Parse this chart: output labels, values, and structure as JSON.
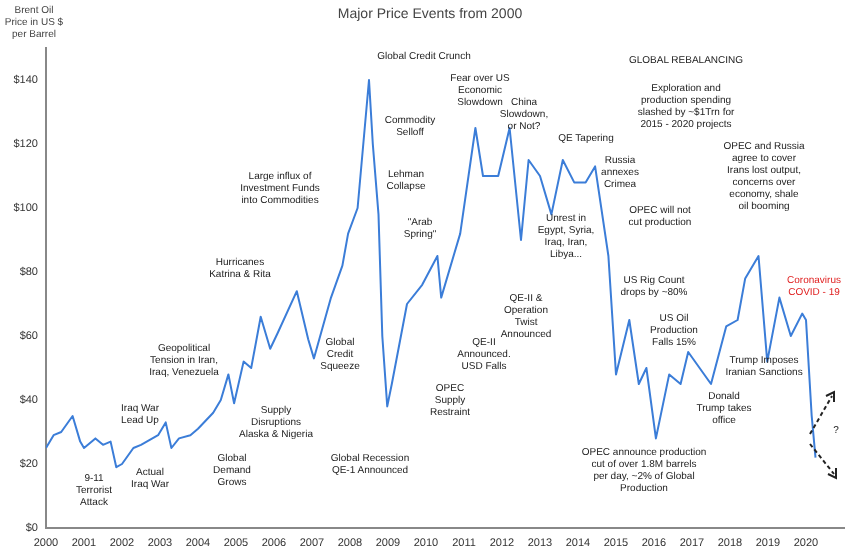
{
  "chart_data": {
    "type": "line",
    "title": "Major Price Events from 2000",
    "ylabel": "Brent Oil\nPrice in US $\nper Barrel",
    "x": [
      2000.0,
      2000.2,
      2000.4,
      2000.7,
      2000.9,
      2001.0,
      2001.3,
      2001.5,
      2001.7,
      2001.85,
      2002.0,
      2002.3,
      2002.5,
      2002.8,
      2002.95,
      2003.15,
      2003.3,
      2003.5,
      2003.8,
      2004.0,
      2004.4,
      2004.6,
      2004.8,
      2004.95,
      2005.2,
      2005.4,
      2005.65,
      2005.9,
      2006.1,
      2006.6,
      2006.9,
      2007.05,
      2007.5,
      2007.8,
      2007.95,
      2008.2,
      2008.5,
      2008.6,
      2008.75,
      2008.85,
      2008.98,
      2009.1,
      2009.5,
      2009.9,
      2010.3,
      2010.4,
      2010.9,
      2011.3,
      2011.5,
      2011.9,
      2012.2,
      2012.5,
      2012.7,
      2013.0,
      2013.3,
      2013.6,
      2013.9,
      2014.2,
      2014.45,
      2014.8,
      2015.0,
      2015.35,
      2015.6,
      2015.8,
      2016.05,
      2016.4,
      2016.7,
      2016.9,
      2017.5,
      2017.9,
      2018.2,
      2018.4,
      2018.75,
      2018.98,
      2019.3,
      2019.6,
      2019.9,
      2020.0,
      2020.15,
      2020.25
    ],
    "series": [
      {
        "color": "#3b7dd8",
        "values": [
          25,
          29,
          30,
          35,
          27,
          25,
          28,
          26,
          27,
          19,
          20,
          25,
          26,
          28,
          29,
          33,
          25,
          28,
          29,
          31,
          36,
          40,
          48,
          39,
          52,
          50,
          66,
          56,
          61,
          74,
          59,
          53,
          72,
          82,
          92,
          100,
          140,
          120,
          98,
          60,
          38,
          45,
          70,
          76,
          85,
          72,
          92,
          125,
          110,
          110,
          125,
          90,
          115,
          110,
          98,
          115,
          108,
          108,
          113,
          85,
          48,
          65,
          45,
          50,
          28,
          48,
          45,
          55,
          45,
          63,
          65,
          78,
          85,
          52,
          72,
          60,
          67,
          65,
          35,
          22
        ]
      }
    ],
    "xlim": [
      2000,
      2021
    ],
    "xticks": [
      2000,
      2001,
      2002,
      2003,
      2004,
      2005,
      2006,
      2007,
      2008,
      2009,
      2010,
      2011,
      2012,
      2013,
      2014,
      2015,
      2016,
      2017,
      2018,
      2019,
      2020
    ],
    "ylim": [
      0,
      150
    ],
    "yticks": [
      {
        "value": 0,
        "label": "$0"
      },
      {
        "value": 20,
        "label": "$20"
      },
      {
        "value": 40,
        "label": "$40"
      },
      {
        "value": 60,
        "label": "$60"
      },
      {
        "value": 80,
        "label": "$80"
      },
      {
        "value": 100,
        "label": "$100"
      },
      {
        "value": 120,
        "label": "$120"
      },
      {
        "value": 140,
        "label": "$140"
      }
    ],
    "grid": false,
    "legend": false,
    "marker": "none",
    "line_style": "solid",
    "annotations": [
      "Global Credit Crunch",
      "Commodity\nSelloff",
      "Lehman\nCollapse",
      "Large influx of\nInvestment Funds\ninto Commodities",
      "\"Arab\nSpring\"",
      "Fear over US\nEconomic\nSlowdown",
      "China\nSlowdown,\nor Not?",
      "QE Tapering",
      "GLOBAL REBALANCING",
      "Exploration and\nproduction spending\nslashed by ~$1Trn for\n2015 - 2020 projects",
      "Russia\nannexes\nCrimea",
      "Unrest in\nEgypt, Syria,\nIraq, Iran,\nLibya...",
      "OPEC will not\ncut production",
      "OPEC and Russia\nagree to cover\nIrans lost output,\nconcerns over\neconomy, shale\noil booming",
      "Coronavirus\nCOVID - 19",
      "QE-II &\nOperation\nTwist\nAnnounced",
      "QE-II\nAnnounced.\nUSD Falls",
      "OPEC\nSupply\nRestraint",
      "US Rig Count\ndrops by ~80%",
      "US Oil\nProduction\nFalls 15%",
      "Trump Imposes\nIranian Sanctions",
      "Donald\nTrump takes\noffice",
      "OPEC announce production\ncut of over 1.8M barrels\nper day, ~2% of Global\nProduction",
      "?",
      "Global Recession\nQE-1 Announced",
      "Global\nCredit\nSqueeze",
      "Hurricanes\nKatrina & Rita",
      "Geopolitical\nTension in Iran,\nIraq, Venezuela",
      "Supply\nDisruptions\nAlaska & Nigeria",
      "Global\nDemand\nGrows",
      "Iraq War\nLead Up",
      "Actual\nIraq War",
      "9-11\nTerrorist\nAttack"
    ]
  }
}
